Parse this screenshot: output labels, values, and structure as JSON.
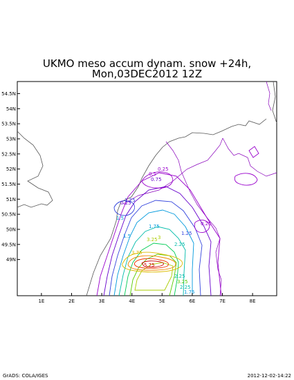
{
  "title": {
    "line1": "UKMO meso accum dynam. snow +24h,",
    "line2": "Mon,03DEC2012 12Z"
  },
  "footer": {
    "left": "GrADS: COLA/IGES",
    "right": "2012-12-02-14:22"
  },
  "map": {
    "lon_range": [
      0.2,
      8.8
    ],
    "lat_range": [
      47.8,
      54.9
    ],
    "x_ticks": [
      "1E",
      "2E",
      "3E",
      "4E",
      "5E",
      "6E",
      "7E",
      "8E"
    ],
    "y_ticks": [
      "54.5N",
      "54N",
      "53.5N",
      "53N",
      "52.5N",
      "52N",
      "51.5N",
      "51N",
      "50.5N",
      "50N",
      "49.5N",
      "49N"
    ],
    "contour_labels": [
      "0.25",
      "0.5",
      "0.75",
      "0.25",
      "1.25",
      "0.25",
      "1.5",
      "1.75",
      "1.25",
      "1.5",
      "2.25",
      "3.75",
      "5.75",
      "3.25",
      "3",
      "2.25",
      "3.25",
      "2.25",
      "1.75"
    ],
    "colors": {
      "coast": "#555555",
      "border": "#8800bb",
      "contours": [
        "#9900cc",
        "#6600cc",
        "#3344dd",
        "#0099dd",
        "#00bbaa",
        "#00cc55",
        "#55cc00",
        "#aacc00",
        "#ddbb00",
        "#ee8800",
        "#ee3300",
        "#cc0000"
      ]
    }
  }
}
